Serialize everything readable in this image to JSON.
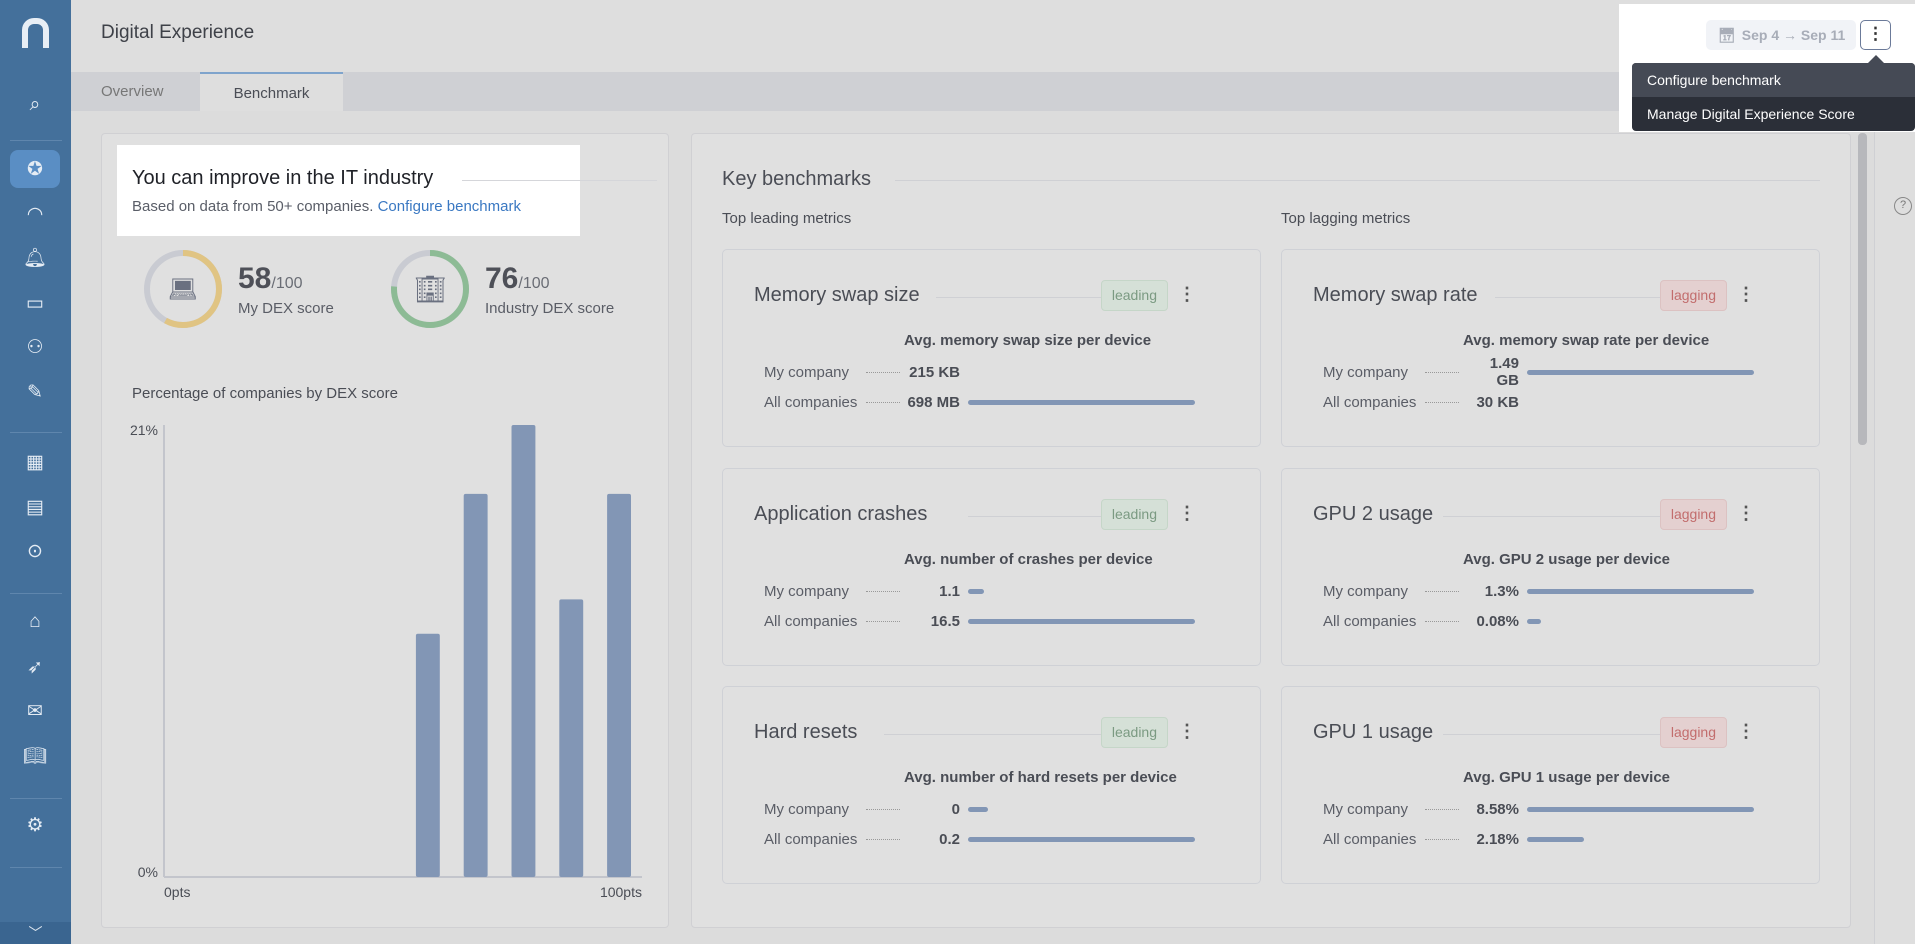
{
  "header": {
    "title": "Digital Experience",
    "date_range": "Sep 4 → Sep 11"
  },
  "tabs": [
    {
      "label": "Overview"
    },
    {
      "label": "Benchmark"
    }
  ],
  "menu": {
    "items": [
      "Configure benchmark",
      "Manage Digital Experience Score"
    ]
  },
  "intro": {
    "title": "You can improve in the IT industry",
    "text": "Based on data from 50+ companies.",
    "link": "Configure benchmark"
  },
  "scores": [
    {
      "value": "58",
      "max": "/100",
      "label": "My DEX score",
      "pct": 58,
      "color": "#e0c483"
    },
    {
      "value": "76",
      "max": "/100",
      "label": "Industry DEX score",
      "pct": 76,
      "color": "#8dbb95"
    }
  ],
  "chart_data": {
    "type": "bar",
    "title": "Percentage of companies by DEX score",
    "x_bins": [
      "0-10",
      "10-20",
      "20-30",
      "30-40",
      "40-50",
      "50-60",
      "60-70",
      "70-80",
      "80-90",
      "90-100"
    ],
    "values": [
      0,
      0,
      0,
      0,
      0,
      11.3,
      17.8,
      21,
      12.9,
      17.8
    ],
    "ylim": [
      0,
      21
    ],
    "y_ticks": [
      "0%",
      "21%"
    ],
    "x_ticks": [
      "0pts",
      "100pts"
    ],
    "bar_color": "#8296b5"
  },
  "benchmarks": {
    "title": "Key benchmarks",
    "leading_header": "Top leading metrics",
    "lagging_header": "Top lagging metrics",
    "row_labels": {
      "my": "My company",
      "all": "All companies"
    },
    "cards": [
      {
        "title": "Memory swap size",
        "badge": "leading",
        "subtitle": "Avg. memory swap size per device",
        "my": "215 KB",
        "all": "698 MB",
        "my_bar": 0,
        "all_bar": 1
      },
      {
        "title": "Memory swap rate",
        "badge": "lagging",
        "subtitle": "Avg. memory swap rate per device",
        "my": "1.49 GB",
        "all": "30 KB",
        "my_bar": 1,
        "all_bar": 0
      },
      {
        "title": "Application crashes",
        "badge": "leading",
        "subtitle": "Avg. number of crashes per device",
        "my": "1.1",
        "all": "16.5",
        "my_bar": 0.07,
        "all_bar": 1
      },
      {
        "title": "GPU 2 usage",
        "badge": "lagging",
        "subtitle": "Avg. GPU 2 usage per device",
        "my": "1.3%",
        "all": "0.08%",
        "my_bar": 1,
        "all_bar": 0.06
      },
      {
        "title": "Hard resets",
        "badge": "leading",
        "subtitle": "Avg. number of hard resets per device",
        "my": "0",
        "all": "0.2",
        "my_bar": 0.09,
        "all_bar": 1
      },
      {
        "title": "GPU 1 usage",
        "badge": "lagging",
        "subtitle": "Avg. GPU 1 usage per device",
        "my": "8.58%",
        "all": "2.18%",
        "my_bar": 1,
        "all_bar": 0.25
      }
    ]
  },
  "help_icon": "?"
}
